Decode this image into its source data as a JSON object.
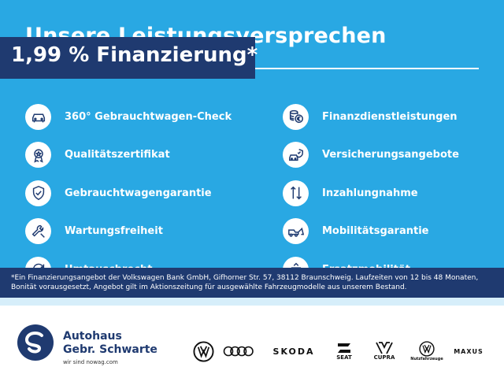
{
  "headline": "Unsere Leistungsversprechen",
  "promo": "1,99 % Finanzierung*",
  "left_items": [
    {
      "icon": "car-check-icon",
      "label": "360° Gebrauchtwagen-Check"
    },
    {
      "icon": "certificate-icon",
      "label": "Qualitätszertifikat"
    },
    {
      "icon": "shield-check-icon",
      "label": "Gebrauchtwagengarantie"
    },
    {
      "icon": "wrench-icon",
      "label": "Wartungsfreiheit"
    },
    {
      "icon": "exchange-icon",
      "label": "Umtauschrecht"
    }
  ],
  "right_items": [
    {
      "icon": "coins-euro-icon",
      "label": "Finanzdienstleistungen"
    },
    {
      "icon": "car-insurance-icon",
      "label": "Versicherungsangebote"
    },
    {
      "icon": "trade-in-arrows-icon",
      "label": "Inzahlungnahme"
    },
    {
      "icon": "tow-truck-icon",
      "label": "Mobilitätsgarantie"
    },
    {
      "icon": "replacement-car-icon",
      "label": "Ersatzmobilität"
    }
  ],
  "disclaimer": "*Ein Finanzierungsangebot der Volkswagen Bank GmbH, Gifhorner Str. 57, 38112 Braunschweig. Laufzeiten von 12 bis 48 Monaten, Bonität vorausgesetzt, Angebot gilt im Aktionszeitung für ausgewählte Fahrzeugmodelle aus unserem Bestand.",
  "dealer": {
    "line1": "Autohaus",
    "line2": "Gebr. Schwarte",
    "tagline": "wir sind nowag.com"
  },
  "brands": {
    "skoda": "SKODA",
    "seat": "SEAT",
    "cupra": "CUPRA",
    "vwn": "Nutzfahrzeuge",
    "maxus": "MAXUS"
  },
  "colors": {
    "background": "#29a8e3",
    "navy": "#1f3a70",
    "white": "#ffffff"
  }
}
